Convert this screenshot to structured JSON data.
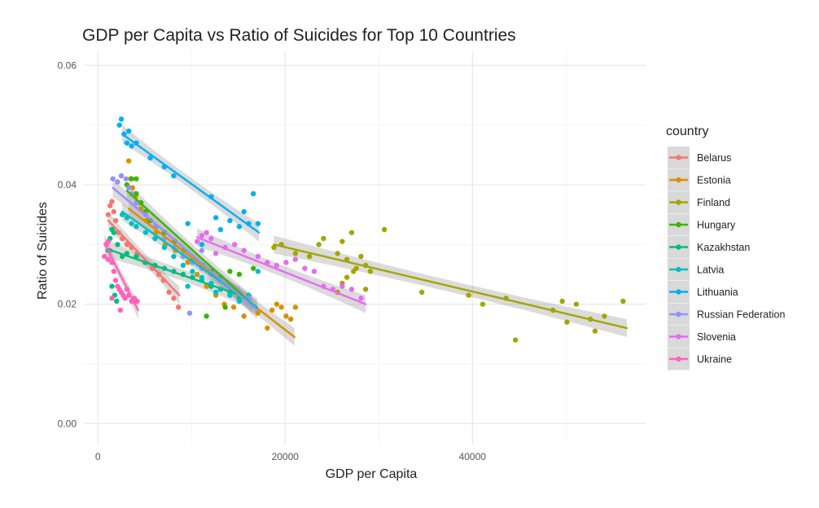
{
  "chart_data": {
    "type": "scatter",
    "title": "GDP per Capita vs Ratio of Suicides for Top 10 Countries",
    "xlabel": "GDP per Capita",
    "ylabel": "Ratio of Suicides",
    "xlim": [
      -1500,
      58500
    ],
    "ylim": [
      -0.0035,
      0.0625
    ],
    "x_ticks": [
      0,
      20000,
      40000
    ],
    "x_tick_labels": [
      "0",
      "20000",
      "40000"
    ],
    "y_ticks": [
      0,
      0.02,
      0.04,
      0.06
    ],
    "y_tick_labels": [
      "0.00",
      "0.02",
      "0.04",
      "0.06"
    ],
    "grid": true,
    "legend_title": "country",
    "legend_position": "right",
    "series": [
      {
        "name": "Belarus",
        "color": "#F8766D",
        "points": [
          [
            1100,
            0.035
          ],
          [
            1300,
            0.0365
          ],
          [
            1500,
            0.0372
          ],
          [
            1700,
            0.0355
          ],
          [
            1900,
            0.034
          ],
          [
            2200,
            0.032
          ],
          [
            2600,
            0.031
          ],
          [
            3100,
            0.03
          ],
          [
            3600,
            0.0295
          ],
          [
            4200,
            0.0285
          ],
          [
            5000,
            0.027
          ],
          [
            5800,
            0.026
          ],
          [
            6500,
            0.025
          ],
          [
            7000,
            0.024
          ],
          [
            7600,
            0.022
          ],
          [
            8100,
            0.021
          ],
          [
            8600,
            0.0195
          ]
        ],
        "fit": [
          [
            1100,
            0.034
          ],
          [
            8700,
            0.0215
          ]
        ]
      },
      {
        "name": "Estonia",
        "color": "#D89000",
        "points": [
          [
            3300,
            0.044
          ],
          [
            3500,
            0.041
          ],
          [
            3700,
            0.0395
          ],
          [
            4000,
            0.038
          ],
          [
            4600,
            0.036
          ],
          [
            5200,
            0.034
          ],
          [
            6200,
            0.032
          ],
          [
            7200,
            0.03
          ],
          [
            8300,
            0.029
          ],
          [
            9600,
            0.027
          ],
          [
            10600,
            0.025
          ],
          [
            11600,
            0.023
          ],
          [
            12600,
            0.0215
          ],
          [
            13500,
            0.02
          ],
          [
            14500,
            0.0195
          ],
          [
            15600,
            0.018
          ],
          [
            17100,
            0.0185
          ],
          [
            18100,
            0.016
          ],
          [
            18600,
            0.019
          ],
          [
            19100,
            0.02
          ],
          [
            19600,
            0.0195
          ],
          [
            20100,
            0.018
          ],
          [
            20600,
            0.0175
          ],
          [
            21100,
            0.0195
          ]
        ],
        "fit": [
          [
            3300,
            0.036
          ],
          [
            21000,
            0.0145
          ]
        ]
      },
      {
        "name": "Finland",
        "color": "#A3A500",
        "points": [
          [
            18800,
            0.0295
          ],
          [
            19600,
            0.03
          ],
          [
            21100,
            0.0285
          ],
          [
            22600,
            0.028
          ],
          [
            23600,
            0.03
          ],
          [
            24100,
            0.031
          ],
          [
            25600,
            0.0285
          ],
          [
            26100,
            0.0305
          ],
          [
            26600,
            0.0275
          ],
          [
            27100,
            0.032
          ],
          [
            27300,
            0.0255
          ],
          [
            27600,
            0.026
          ],
          [
            28100,
            0.028
          ],
          [
            28600,
            0.0265
          ],
          [
            29100,
            0.0255
          ],
          [
            30600,
            0.0325
          ],
          [
            25600,
            0.022
          ],
          [
            26100,
            0.0235
          ],
          [
            26600,
            0.0245
          ],
          [
            28600,
            0.0225
          ],
          [
            34600,
            0.022
          ],
          [
            39600,
            0.0215
          ],
          [
            41100,
            0.02
          ],
          [
            43600,
            0.021
          ],
          [
            44600,
            0.014
          ],
          [
            48600,
            0.019
          ],
          [
            49600,
            0.0205
          ],
          [
            50100,
            0.017
          ],
          [
            51100,
            0.02
          ],
          [
            52600,
            0.0175
          ],
          [
            53100,
            0.0155
          ],
          [
            54100,
            0.018
          ],
          [
            56100,
            0.0205
          ]
        ],
        "fit": [
          [
            18800,
            0.03
          ],
          [
            56500,
            0.016
          ]
        ]
      },
      {
        "name": "Hungary",
        "color": "#39B600",
        "points": [
          [
            3100,
            0.04
          ],
          [
            3600,
            0.041
          ],
          [
            4100,
            0.041
          ],
          [
            4100,
            0.0385
          ],
          [
            4600,
            0.037
          ],
          [
            5100,
            0.0355
          ],
          [
            5600,
            0.034
          ],
          [
            6200,
            0.033
          ],
          [
            7100,
            0.032
          ],
          [
            8200,
            0.0305
          ],
          [
            9200,
            0.029
          ],
          [
            10200,
            0.0275
          ],
          [
            11200,
            0.0265
          ],
          [
            12100,
            0.0255
          ],
          [
            13100,
            0.0245
          ],
          [
            14100,
            0.0255
          ],
          [
            15100,
            0.025
          ],
          [
            16600,
            0.026
          ],
          [
            11600,
            0.018
          ],
          [
            13600,
            0.0195
          ]
        ],
        "fit": [
          [
            3100,
            0.039
          ],
          [
            16500,
            0.02
          ]
        ]
      },
      {
        "name": "Kazakhstan",
        "color": "#00BF7D",
        "points": [
          [
            1100,
            0.029
          ],
          [
            1300,
            0.031
          ],
          [
            1500,
            0.0325
          ],
          [
            1700,
            0.032
          ],
          [
            2100,
            0.03
          ],
          [
            2600,
            0.028
          ],
          [
            3100,
            0.0285
          ],
          [
            4100,
            0.028
          ],
          [
            5100,
            0.027
          ],
          [
            6100,
            0.0265
          ],
          [
            7100,
            0.026
          ],
          [
            8100,
            0.0255
          ],
          [
            9100,
            0.025
          ],
          [
            10100,
            0.0245
          ],
          [
            11100,
            0.024
          ],
          [
            12100,
            0.023
          ],
          [
            13100,
            0.0225
          ],
          [
            14100,
            0.022
          ],
          [
            15100,
            0.021
          ],
          [
            1500,
            0.023
          ],
          [
            1800,
            0.0215
          ],
          [
            2000,
            0.0205
          ]
        ],
        "fit": [
          [
            1100,
            0.0292
          ],
          [
            15200,
            0.0215
          ]
        ]
      },
      {
        "name": "Latvia",
        "color": "#00BFC4",
        "points": [
          [
            2600,
            0.035
          ],
          [
            3100,
            0.0345
          ],
          [
            3600,
            0.0335
          ],
          [
            4100,
            0.033
          ],
          [
            5100,
            0.032
          ],
          [
            6100,
            0.031
          ],
          [
            7100,
            0.0295
          ],
          [
            8100,
            0.028
          ],
          [
            9100,
            0.0265
          ],
          [
            10100,
            0.0255
          ],
          [
            11100,
            0.0245
          ],
          [
            12100,
            0.0235
          ],
          [
            13100,
            0.0225
          ],
          [
            14100,
            0.0215
          ],
          [
            15100,
            0.0205
          ],
          [
            16100,
            0.0215
          ],
          [
            17100,
            0.0255
          ],
          [
            9600,
            0.023
          ],
          [
            12600,
            0.022
          ]
        ],
        "fit": [
          [
            2600,
            0.0355
          ],
          [
            17000,
            0.0195
          ]
        ]
      },
      {
        "name": "Lithuania",
        "color": "#00B0F6",
        "points": [
          [
            2300,
            0.05
          ],
          [
            2500,
            0.051
          ],
          [
            2800,
            0.0485
          ],
          [
            3100,
            0.047
          ],
          [
            3300,
            0.049
          ],
          [
            3600,
            0.0465
          ],
          [
            4100,
            0.047
          ],
          [
            5600,
            0.0445
          ],
          [
            7100,
            0.043
          ],
          [
            8100,
            0.0415
          ],
          [
            9600,
            0.0335
          ],
          [
            11100,
            0.03
          ],
          [
            12100,
            0.038
          ],
          [
            12600,
            0.0345
          ],
          [
            13100,
            0.0325
          ],
          [
            14100,
            0.034
          ],
          [
            15100,
            0.033
          ],
          [
            15600,
            0.0355
          ],
          [
            16100,
            0.0335
          ],
          [
            16600,
            0.0385
          ],
          [
            17100,
            0.0335
          ]
        ],
        "fit": [
          [
            2600,
            0.0485
          ],
          [
            17200,
            0.032
          ]
        ]
      },
      {
        "name": "Russian Federation",
        "color": "#9590FF",
        "points": [
          [
            1600,
            0.041
          ],
          [
            2100,
            0.0405
          ],
          [
            2500,
            0.0415
          ],
          [
            3000,
            0.041
          ],
          [
            3300,
            0.0395
          ],
          [
            3600,
            0.0385
          ],
          [
            4100,
            0.037
          ],
          [
            5100,
            0.035
          ],
          [
            6100,
            0.033
          ],
          [
            7100,
            0.031
          ],
          [
            8100,
            0.0295
          ],
          [
            9100,
            0.028
          ],
          [
            10100,
            0.027
          ],
          [
            11100,
            0.026
          ],
          [
            12100,
            0.025
          ],
          [
            13100,
            0.024
          ],
          [
            14100,
            0.023
          ],
          [
            15100,
            0.022
          ],
          [
            16100,
            0.021
          ],
          [
            9800,
            0.0185
          ],
          [
            11100,
            0.029
          ]
        ],
        "fit": [
          [
            1600,
            0.0395
          ],
          [
            17000,
            0.019
          ]
        ]
      },
      {
        "name": "Slovenia",
        "color": "#E76BF3",
        "points": [
          [
            10600,
            0.0305
          ],
          [
            11100,
            0.0315
          ],
          [
            11600,
            0.032
          ],
          [
            12100,
            0.031
          ],
          [
            12600,
            0.0285
          ],
          [
            13600,
            0.0295
          ],
          [
            14600,
            0.03
          ],
          [
            15600,
            0.029
          ],
          [
            17100,
            0.028
          ],
          [
            18100,
            0.027
          ],
          [
            19100,
            0.0265
          ],
          [
            20100,
            0.027
          ],
          [
            21100,
            0.0275
          ],
          [
            22100,
            0.026
          ],
          [
            23100,
            0.0255
          ],
          [
            24100,
            0.023
          ],
          [
            25100,
            0.0225
          ],
          [
            26100,
            0.023
          ],
          [
            27100,
            0.0225
          ],
          [
            28100,
            0.021
          ]
        ],
        "fit": [
          [
            10600,
            0.0312
          ],
          [
            28600,
            0.02
          ]
        ]
      },
      {
        "name": "Ukraine",
        "color": "#FF62BC",
        "points": [
          [
            700,
            0.028
          ],
          [
            900,
            0.03
          ],
          [
            1100,
            0.0305
          ],
          [
            1300,
            0.029
          ],
          [
            1500,
            0.027
          ],
          [
            1700,
            0.0255
          ],
          [
            1900,
            0.024
          ],
          [
            2100,
            0.023
          ],
          [
            2300,
            0.0225
          ],
          [
            2500,
            0.022
          ],
          [
            2700,
            0.0215
          ],
          [
            2900,
            0.021
          ],
          [
            3100,
            0.0225
          ],
          [
            3300,
            0.0215
          ],
          [
            3600,
            0.0205
          ],
          [
            3900,
            0.021
          ],
          [
            4200,
            0.0205
          ],
          [
            1500,
            0.021
          ],
          [
            2400,
            0.019
          ],
          [
            1100,
            0.0275
          ]
        ],
        "fit": [
          [
            700,
            0.0302
          ],
          [
            4300,
            0.019
          ]
        ]
      }
    ]
  }
}
